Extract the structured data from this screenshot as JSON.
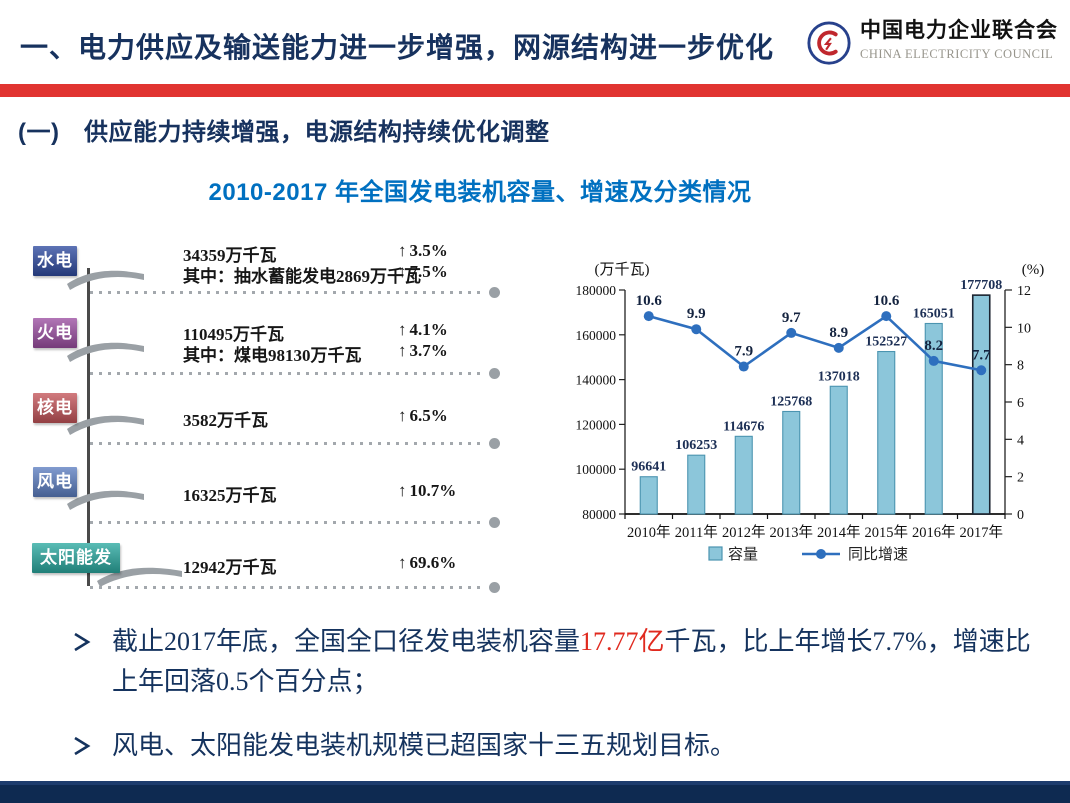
{
  "header": {
    "title": "一、电力供应及输送能力进一步增强，网源结构进一步优化",
    "org_cn": "中国电力企业联合会",
    "org_en": "CHINA ELECTRICITY COUNCIL"
  },
  "section": {
    "heading": "(一)　供应能力持续增强，电源结构持续优化调整"
  },
  "chart_title": "2010-2017 年全国发电装机容量、增速及分类情况",
  "panel": {
    "arrow": "↑",
    "rows": [
      {
        "label": "水电",
        "color": "#2f4ba0",
        "lines": [
          {
            "text": "34359万千瓦",
            "pct": "3.5%"
          },
          {
            "text": "其中：抽水蓄能发电2869万千瓦",
            "pct": "7.5%"
          }
        ]
      },
      {
        "label": "火电",
        "color": "#9c4fa2",
        "lines": [
          {
            "text": "110495万千瓦",
            "pct": "4.1%"
          },
          {
            "text": "其中：煤电98130万千瓦",
            "pct": "3.7%"
          }
        ]
      },
      {
        "label": "核电",
        "color": "#c4555a",
        "lines": [
          {
            "text": "3582万千瓦",
            "pct": "6.5%"
          }
        ]
      },
      {
        "label": "风电",
        "color": "#5d7fc2",
        "lines": [
          {
            "text": "16325万千瓦",
            "pct": "10.7%"
          }
        ]
      },
      {
        "label": "太阳能发电",
        "color": "#2ba9a0",
        "lines": [
          {
            "text": "12942万千瓦",
            "pct": "69.6%"
          }
        ]
      }
    ]
  },
  "chart_data": {
    "type": "bar+line",
    "categories": [
      "2010年",
      "2011年",
      "2012年",
      "2013年",
      "2014年",
      "2015年",
      "2016年",
      "2017年"
    ],
    "series": [
      {
        "name": "容量",
        "type": "bar",
        "values": [
          96641,
          106253,
          114676,
          125768,
          137018,
          152527,
          165051,
          177708
        ]
      },
      {
        "name": "同比增速",
        "type": "line",
        "values": [
          10.6,
          9.9,
          7.9,
          9.7,
          8.9,
          10.6,
          8.2,
          7.7
        ]
      }
    ],
    "left_axis": {
      "label": "(万千瓦)",
      "min": 80000,
      "max": 180000,
      "step": 20000
    },
    "right_axis": {
      "label": "(%)",
      "min": 0,
      "max": 12,
      "step": 2
    },
    "legend_position": "bottom",
    "grid": false,
    "colors": {
      "bar_fill": "#8cc6da",
      "bar_stroke": "#4b94b0",
      "bar_stroke_last": "#1b2430",
      "line": "#2e6fbe"
    }
  },
  "bullets": {
    "highlight_color": "#e02a1f",
    "items": [
      {
        "pre": "截止2017年底，全国全口径发电装机容量",
        "highlight": "17.77亿",
        "post": "千瓦，比上年增长7.7%，增速比上年回落0.5个百分点；"
      },
      {
        "pre": "风电、太阳能发电装机规模已超国家十三五规划目标。",
        "highlight": "",
        "post": ""
      }
    ]
  }
}
